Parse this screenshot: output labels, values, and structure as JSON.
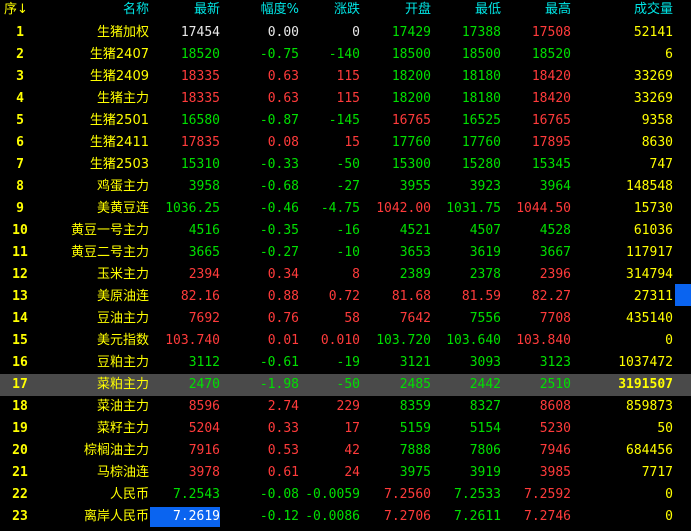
{
  "header": {
    "seq": "序↓",
    "name": "名称",
    "latest": "最新",
    "pct": "幅度%",
    "change": "涨跌",
    "open": "开盘",
    "low": "最低",
    "high": "最高",
    "volume": "成交量"
  },
  "colors": {
    "up": "#ff3b3b",
    "down": "#00e000",
    "flat": "#e8e8e8",
    "label": "#ffff00",
    "header": "#00e5e5",
    "selected_row": "#4a4a4a",
    "highlight": "#0a64f0"
  },
  "selected_row": 17,
  "rows": [
    {
      "seq": "1",
      "name": "生猪加权",
      "latest": "17454",
      "pct": "0.00",
      "change": "0",
      "open": "17429",
      "low": "17388",
      "high": "17508",
      "volume": "52141",
      "colors": "wwwggry"
    },
    {
      "seq": "2",
      "name": "生猪2407",
      "latest": "18520",
      "pct": "-0.75",
      "change": "-140",
      "open": "18500",
      "low": "18500",
      "high": "18520",
      "volume": "6",
      "colors": "ggggggy"
    },
    {
      "seq": "3",
      "name": "生猪2409",
      "latest": "18335",
      "pct": "0.63",
      "change": "115",
      "open": "18200",
      "low": "18180",
      "high": "18420",
      "volume": "33269",
      "colors": "rrrggry"
    },
    {
      "seq": "4",
      "name": "生猪主力",
      "latest": "18335",
      "pct": "0.63",
      "change": "115",
      "open": "18200",
      "low": "18180",
      "high": "18420",
      "volume": "33269",
      "colors": "rrrggry"
    },
    {
      "seq": "5",
      "name": "生猪2501",
      "latest": "16580",
      "pct": "-0.87",
      "change": "-145",
      "open": "16765",
      "low": "16525",
      "high": "16765",
      "volume": "9358",
      "colors": "gggrgry"
    },
    {
      "seq": "6",
      "name": "生猪2411",
      "latest": "17835",
      "pct": "0.08",
      "change": "15",
      "open": "17760",
      "low": "17760",
      "high": "17895",
      "volume": "8630",
      "colors": "rrrggry"
    },
    {
      "seq": "7",
      "name": "生猪2503",
      "latest": "15310",
      "pct": "-0.33",
      "change": "-50",
      "open": "15300",
      "low": "15280",
      "high": "15345",
      "volume": "747",
      "colors": "ggggggy"
    },
    {
      "seq": "8",
      "name": "鸡蛋主力",
      "latest": "3958",
      "pct": "-0.68",
      "change": "-27",
      "open": "3955",
      "low": "3923",
      "high": "3964",
      "volume": "148548",
      "colors": "ggggggy"
    },
    {
      "seq": "9",
      "name": "美黄豆连",
      "latest": "1036.25",
      "pct": "-0.46",
      "change": "-4.75",
      "open": "1042.00",
      "low": "1031.75",
      "high": "1044.50",
      "volume": "15730",
      "colors": "gggrgry"
    },
    {
      "seq": "10",
      "name": "黄豆一号主力",
      "latest": "4516",
      "pct": "-0.35",
      "change": "-16",
      "open": "4521",
      "low": "4507",
      "high": "4528",
      "volume": "61036",
      "colors": "ggggggy"
    },
    {
      "seq": "11",
      "name": "黄豆二号主力",
      "latest": "3665",
      "pct": "-0.27",
      "change": "-10",
      "open": "3653",
      "low": "3619",
      "high": "3667",
      "volume": "117917",
      "colors": "ggggggy"
    },
    {
      "seq": "12",
      "name": "玉米主力",
      "latest": "2394",
      "pct": "0.34",
      "change": "8",
      "open": "2389",
      "low": "2378",
      "high": "2396",
      "volume": "314794",
      "colors": "rrrggry"
    },
    {
      "seq": "13",
      "name": "美原油连",
      "latest": "82.16",
      "pct": "0.88",
      "change": "0.72",
      "open": "81.68",
      "low": "81.59",
      "high": "82.27",
      "volume": "27311",
      "colors": "rrrrrro"
    },
    {
      "seq": "14",
      "name": "豆油主力",
      "latest": "7692",
      "pct": "0.76",
      "change": "58",
      "open": "7642",
      "low": "7556",
      "high": "7708",
      "volume": "435140",
      "colors": "rrrrgry"
    },
    {
      "seq": "15",
      "name": "美元指数",
      "latest": "103.740",
      "pct": "0.01",
      "change": "0.010",
      "open": "103.720",
      "low": "103.640",
      "high": "103.840",
      "volume": "0",
      "colors": "rrrggry"
    },
    {
      "seq": "16",
      "name": "豆粕主力",
      "latest": "3112",
      "pct": "-0.61",
      "change": "-19",
      "open": "3121",
      "low": "3093",
      "high": "3123",
      "volume": "1037472",
      "colors": "ggggggy"
    },
    {
      "seq": "17",
      "name": "菜粕主力",
      "latest": "2470",
      "pct": "-1.98",
      "change": "-50",
      "open": "2485",
      "low": "2442",
      "high": "2510",
      "volume": "3191507",
      "colors": "ggggggy"
    },
    {
      "seq": "18",
      "name": "菜油主力",
      "latest": "8596",
      "pct": "2.74",
      "change": "229",
      "open": "8359",
      "low": "8327",
      "high": "8608",
      "volume": "859873",
      "colors": "rrrggry"
    },
    {
      "seq": "19",
      "name": "菜籽主力",
      "latest": "5204",
      "pct": "0.33",
      "change": "17",
      "open": "5159",
      "low": "5154",
      "high": "5230",
      "volume": "50",
      "colors": "rrrggry"
    },
    {
      "seq": "20",
      "name": "棕榈油主力",
      "latest": "7916",
      "pct": "0.53",
      "change": "42",
      "open": "7888",
      "low": "7806",
      "high": "7946",
      "volume": "684456",
      "colors": "rrrggry"
    },
    {
      "seq": "21",
      "name": "马棕油连",
      "latest": "3978",
      "pct": "0.61",
      "change": "24",
      "open": "3975",
      "low": "3919",
      "high": "3985",
      "volume": "7717",
      "colors": "rrrggry"
    },
    {
      "seq": "22",
      "name": "人民币",
      "latest": "7.2543",
      "pct": "-0.08",
      "change": "-0.0059",
      "open": "7.2560",
      "low": "7.2533",
      "high": "7.2592",
      "volume": "0",
      "colors": "gggrgry"
    },
    {
      "seq": "23",
      "name": "离岸人民币",
      "latest": "7.2619",
      "pct": "-0.12",
      "change": "-0.0086",
      "open": "7.2706",
      "low": "7.2611",
      "high": "7.2746",
      "volume": "0",
      "colors": "hggrgry"
    }
  ]
}
